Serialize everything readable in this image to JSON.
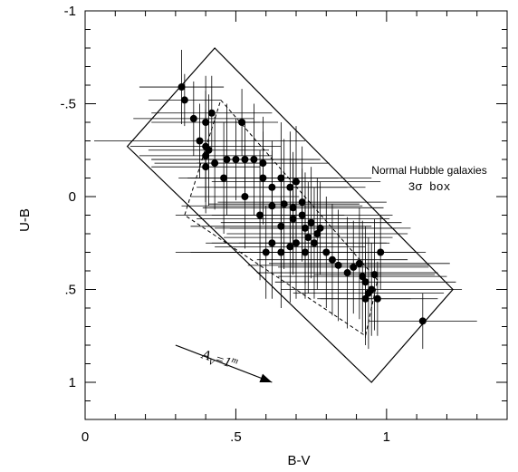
{
  "chart_data": {
    "type": "scatter",
    "xlabel": "B-V",
    "ylabel": "U-B",
    "xlim": [
      0,
      1.4
    ],
    "ylim": [
      -1,
      1.2
    ],
    "y_inverted": true,
    "x_ticks": [
      {
        "value": 0,
        "label": "0"
      },
      {
        "value": 0.5,
        "label": ".5"
      },
      {
        "value": 1,
        "label": "1"
      }
    ],
    "y_ticks": [
      {
        "value": -1,
        "label": "-1"
      },
      {
        "value": -0.5,
        "label": "-.5"
      },
      {
        "value": 0,
        "label": "0"
      },
      {
        "value": 0.5,
        "label": ".5"
      },
      {
        "value": 1,
        "label": "1"
      }
    ],
    "annotations": {
      "box_label_line1": "Normal Hubble galaxies",
      "box_label_line2": "3σ box",
      "vector_label": "A_V=1^m",
      "vector_label_main": "A",
      "vector_label_sub": "V",
      "vector_label_mid": "=1",
      "vector_label_sup": "m"
    },
    "box_3sigma": [
      [
        0.43,
        -0.8
      ],
      [
        1.22,
        0.5
      ],
      [
        0.95,
        1.0
      ],
      [
        0.14,
        -0.27
      ]
    ],
    "box_1sigma": [
      [
        0.45,
        -0.52
      ],
      [
        0.97,
        0.45
      ],
      [
        0.93,
        0.75
      ],
      [
        0.33,
        0.1
      ]
    ],
    "reddening_vector": {
      "from": [
        0.3,
        0.8
      ],
      "to": [
        0.62,
        1.0
      ]
    },
    "points": [
      {
        "x": 0.32,
        "y": -0.59,
        "xerr": 0.14,
        "yerr": 0.2
      },
      {
        "x": 0.33,
        "y": -0.52,
        "xerr": 0.12,
        "yerr": 0.14
      },
      {
        "x": 0.36,
        "y": -0.42,
        "xerr": 0.2,
        "yerr": 0.2
      },
      {
        "x": 0.4,
        "y": -0.4,
        "xerr": 0.18,
        "yerr": 0.25
      },
      {
        "x": 0.42,
        "y": -0.45,
        "xerr": 0.2,
        "yerr": 0.2
      },
      {
        "x": 0.52,
        "y": -0.4,
        "xerr": 0.12,
        "yerr": 0.18
      },
      {
        "x": 0.38,
        "y": -0.3,
        "xerr": 0.35,
        "yerr": 0.2
      },
      {
        "x": 0.4,
        "y": -0.27,
        "xerr": 0.25,
        "yerr": 0.3
      },
      {
        "x": 0.41,
        "y": -0.25,
        "xerr": 0.2,
        "yerr": 0.3
      },
      {
        "x": 0.4,
        "y": -0.22,
        "xerr": 0.22,
        "yerr": 0.25
      },
      {
        "x": 0.4,
        "y": -0.16,
        "xerr": 0.18,
        "yerr": 0.25
      },
      {
        "x": 0.43,
        "y": -0.18,
        "xerr": 0.2,
        "yerr": 0.25
      },
      {
        "x": 0.47,
        "y": -0.2,
        "xerr": 0.25,
        "yerr": 0.3
      },
      {
        "x": 0.5,
        "y": -0.2,
        "xerr": 0.28,
        "yerr": 0.22
      },
      {
        "x": 0.53,
        "y": -0.2,
        "xerr": 0.25,
        "yerr": 0.2
      },
      {
        "x": 0.56,
        "y": -0.2,
        "xerr": 0.2,
        "yerr": 0.3
      },
      {
        "x": 0.59,
        "y": -0.18,
        "xerr": 0.22,
        "yerr": 0.25
      },
      {
        "x": 0.46,
        "y": -0.1,
        "xerr": 0.15,
        "yerr": 0.3
      },
      {
        "x": 0.53,
        "y": 0.0,
        "xerr": 0.18,
        "yerr": 0.28
      },
      {
        "x": 0.59,
        "y": -0.1,
        "xerr": 0.25,
        "yerr": 0.25
      },
      {
        "x": 0.62,
        "y": -0.05,
        "xerr": 0.25,
        "yerr": 0.25
      },
      {
        "x": 0.65,
        "y": -0.1,
        "xerr": 0.3,
        "yerr": 0.3
      },
      {
        "x": 0.68,
        "y": -0.05,
        "xerr": 0.25,
        "yerr": 0.3
      },
      {
        "x": 0.7,
        "y": -0.08,
        "xerr": 0.28,
        "yerr": 0.3
      },
      {
        "x": 0.62,
        "y": 0.05,
        "xerr": 0.3,
        "yerr": 0.3
      },
      {
        "x": 0.66,
        "y": 0.04,
        "xerr": 0.25,
        "yerr": 0.35
      },
      {
        "x": 0.69,
        "y": 0.06,
        "xerr": 0.3,
        "yerr": 0.3
      },
      {
        "x": 0.72,
        "y": 0.03,
        "xerr": 0.28,
        "yerr": 0.3
      },
      {
        "x": 0.58,
        "y": 0.1,
        "xerr": 0.28,
        "yerr": 0.35
      },
      {
        "x": 0.65,
        "y": 0.16,
        "xerr": 0.3,
        "yerr": 0.3
      },
      {
        "x": 0.69,
        "y": 0.12,
        "xerr": 0.32,
        "yerr": 0.3
      },
      {
        "x": 0.72,
        "y": 0.1,
        "xerr": 0.3,
        "yerr": 0.25
      },
      {
        "x": 0.75,
        "y": 0.14,
        "xerr": 0.3,
        "yerr": 0.3
      },
      {
        "x": 0.73,
        "y": 0.17,
        "xerr": 0.3,
        "yerr": 0.3
      },
      {
        "x": 0.78,
        "y": 0.17,
        "xerr": 0.3,
        "yerr": 0.25
      },
      {
        "x": 0.74,
        "y": 0.22,
        "xerr": 0.28,
        "yerr": 0.3
      },
      {
        "x": 0.77,
        "y": 0.2,
        "xerr": 0.3,
        "yerr": 0.3
      },
      {
        "x": 0.7,
        "y": 0.25,
        "xerr": 0.3,
        "yerr": 0.3
      },
      {
        "x": 0.68,
        "y": 0.27,
        "xerr": 0.25,
        "yerr": 0.3
      },
      {
        "x": 0.62,
        "y": 0.25,
        "xerr": 0.2,
        "yerr": 0.3
      },
      {
        "x": 0.76,
        "y": 0.25,
        "xerr": 0.25,
        "yerr": 0.3
      },
      {
        "x": 0.65,
        "y": 0.3,
        "xerr": 0.3,
        "yerr": 0.3
      },
      {
        "x": 0.73,
        "y": 0.3,
        "xerr": 0.25,
        "yerr": 0.25
      },
      {
        "x": 0.6,
        "y": 0.3,
        "xerr": 0.3,
        "yerr": 0.25
      },
      {
        "x": 0.8,
        "y": 0.3,
        "xerr": 0.3,
        "yerr": 0.3
      },
      {
        "x": 0.82,
        "y": 0.34,
        "xerr": 0.25,
        "yerr": 0.3
      },
      {
        "x": 0.84,
        "y": 0.37,
        "xerr": 0.3,
        "yerr": 0.3
      },
      {
        "x": 0.87,
        "y": 0.41,
        "xerr": 0.3,
        "yerr": 0.3
      },
      {
        "x": 0.89,
        "y": 0.38,
        "xerr": 0.25,
        "yerr": 0.25
      },
      {
        "x": 0.91,
        "y": 0.36,
        "xerr": 0.3,
        "yerr": 0.3
      },
      {
        "x": 0.92,
        "y": 0.43,
        "xerr": 0.28,
        "yerr": 0.3
      },
      {
        "x": 0.93,
        "y": 0.46,
        "xerr": 0.3,
        "yerr": 0.3
      },
      {
        "x": 0.94,
        "y": 0.52,
        "xerr": 0.25,
        "yerr": 0.3
      },
      {
        "x": 0.95,
        "y": 0.5,
        "xerr": 0.3,
        "yerr": 0.25
      },
      {
        "x": 0.97,
        "y": 0.55,
        "xerr": 0.2,
        "yerr": 0.2
      },
      {
        "x": 0.98,
        "y": 0.3,
        "xerr": 0.15,
        "yerr": 0.2
      },
      {
        "x": 0.96,
        "y": 0.42,
        "xerr": 0.2,
        "yerr": 0.3
      },
      {
        "x": 0.93,
        "y": 0.55,
        "xerr": 0.15,
        "yerr": 0.25
      },
      {
        "x": 1.12,
        "y": 0.67,
        "xerr": 0.18,
        "yerr": 0.15
      }
    ]
  }
}
